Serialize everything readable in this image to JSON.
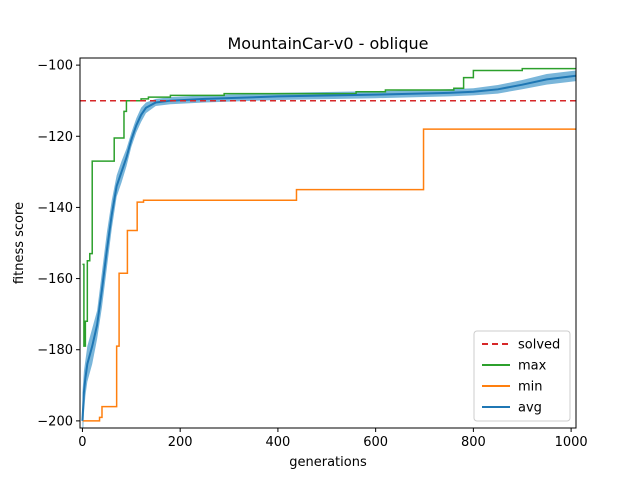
{
  "chart_data": {
    "type": "line",
    "title": "MountainCar-v0 - oblique",
    "xlabel": "generations",
    "ylabel": "fitness score",
    "xlim": [
      -5,
      1010
    ],
    "ylim": [
      -202,
      -98
    ],
    "xticks": [
      0,
      200,
      400,
      600,
      800,
      1000
    ],
    "yticks": [
      -200,
      -180,
      -160,
      -140,
      -120,
      -100
    ],
    "xtick_labels": [
      "0",
      "200",
      "400",
      "600",
      "800",
      "1000"
    ],
    "ytick_labels": [
      "−200",
      "−180",
      "−160",
      "−140",
      "−120",
      "−100"
    ],
    "legend_position": "lower-right",
    "grid": false,
    "solved": {
      "name": "solved",
      "y": -110,
      "color": "#d62728",
      "style": "dashed"
    },
    "series": [
      {
        "name": "max",
        "color": "#2ca02c",
        "step": true,
        "points": [
          [
            0,
            -156
          ],
          [
            3,
            -179
          ],
          [
            6,
            -172
          ],
          [
            10,
            -155
          ],
          [
            15,
            -153
          ],
          [
            20,
            -127
          ],
          [
            60,
            -127
          ],
          [
            65,
            -120.5
          ],
          [
            80,
            -120.5
          ],
          [
            85,
            -113
          ],
          [
            90,
            -110
          ],
          [
            120,
            -109.5
          ],
          [
            135,
            -109
          ],
          [
            180,
            -108.5
          ],
          [
            290,
            -108
          ],
          [
            430,
            -108
          ],
          [
            560,
            -107.5
          ],
          [
            620,
            -107
          ],
          [
            700,
            -107
          ],
          [
            760,
            -106.5
          ],
          [
            780,
            -103.5
          ],
          [
            800,
            -101.5
          ],
          [
            900,
            -101
          ],
          [
            1010,
            -101
          ]
        ]
      },
      {
        "name": "min",
        "color": "#ff7f0e",
        "step": true,
        "points": [
          [
            0,
            -200
          ],
          [
            35,
            -199
          ],
          [
            40,
            -196
          ],
          [
            65,
            -196
          ],
          [
            70,
            -179
          ],
          [
            75,
            -158.5
          ],
          [
            90,
            -158.5
          ],
          [
            92,
            -146.5
          ],
          [
            110,
            -146.5
          ],
          [
            112,
            -138.5
          ],
          [
            125,
            -138
          ],
          [
            435,
            -138
          ],
          [
            438,
            -135
          ],
          [
            695,
            -135
          ],
          [
            698,
            -118
          ],
          [
            1010,
            -118
          ]
        ]
      },
      {
        "name": "avg",
        "color": "#1f77b4",
        "step": false,
        "band_color": "#6baed6",
        "points": [
          [
            0,
            -200
          ],
          [
            3,
            -192
          ],
          [
            6,
            -188
          ],
          [
            10,
            -184
          ],
          [
            20,
            -179
          ],
          [
            30,
            -173
          ],
          [
            40,
            -163
          ],
          [
            50,
            -152
          ],
          [
            60,
            -142
          ],
          [
            70,
            -134
          ],
          [
            80,
            -130
          ],
          [
            90,
            -126
          ],
          [
            100,
            -121
          ],
          [
            110,
            -117
          ],
          [
            120,
            -114
          ],
          [
            130,
            -112
          ],
          [
            150,
            -110.5
          ],
          [
            180,
            -110
          ],
          [
            250,
            -109.5
          ],
          [
            400,
            -108.8
          ],
          [
            600,
            -108.3
          ],
          [
            750,
            -107.8
          ],
          [
            800,
            -107.5
          ],
          [
            850,
            -106.8
          ],
          [
            900,
            -105.5
          ],
          [
            950,
            -104
          ],
          [
            1010,
            -103
          ]
        ],
        "band": [
          8,
          6,
          5,
          5,
          5,
          4,
          5,
          5,
          4,
          3,
          3,
          2.5,
          2,
          2,
          2,
          1.5,
          1,
          1,
          1,
          1,
          1,
          1,
          1,
          1.2,
          1.3,
          1.5,
          1.5
        ]
      }
    ]
  }
}
